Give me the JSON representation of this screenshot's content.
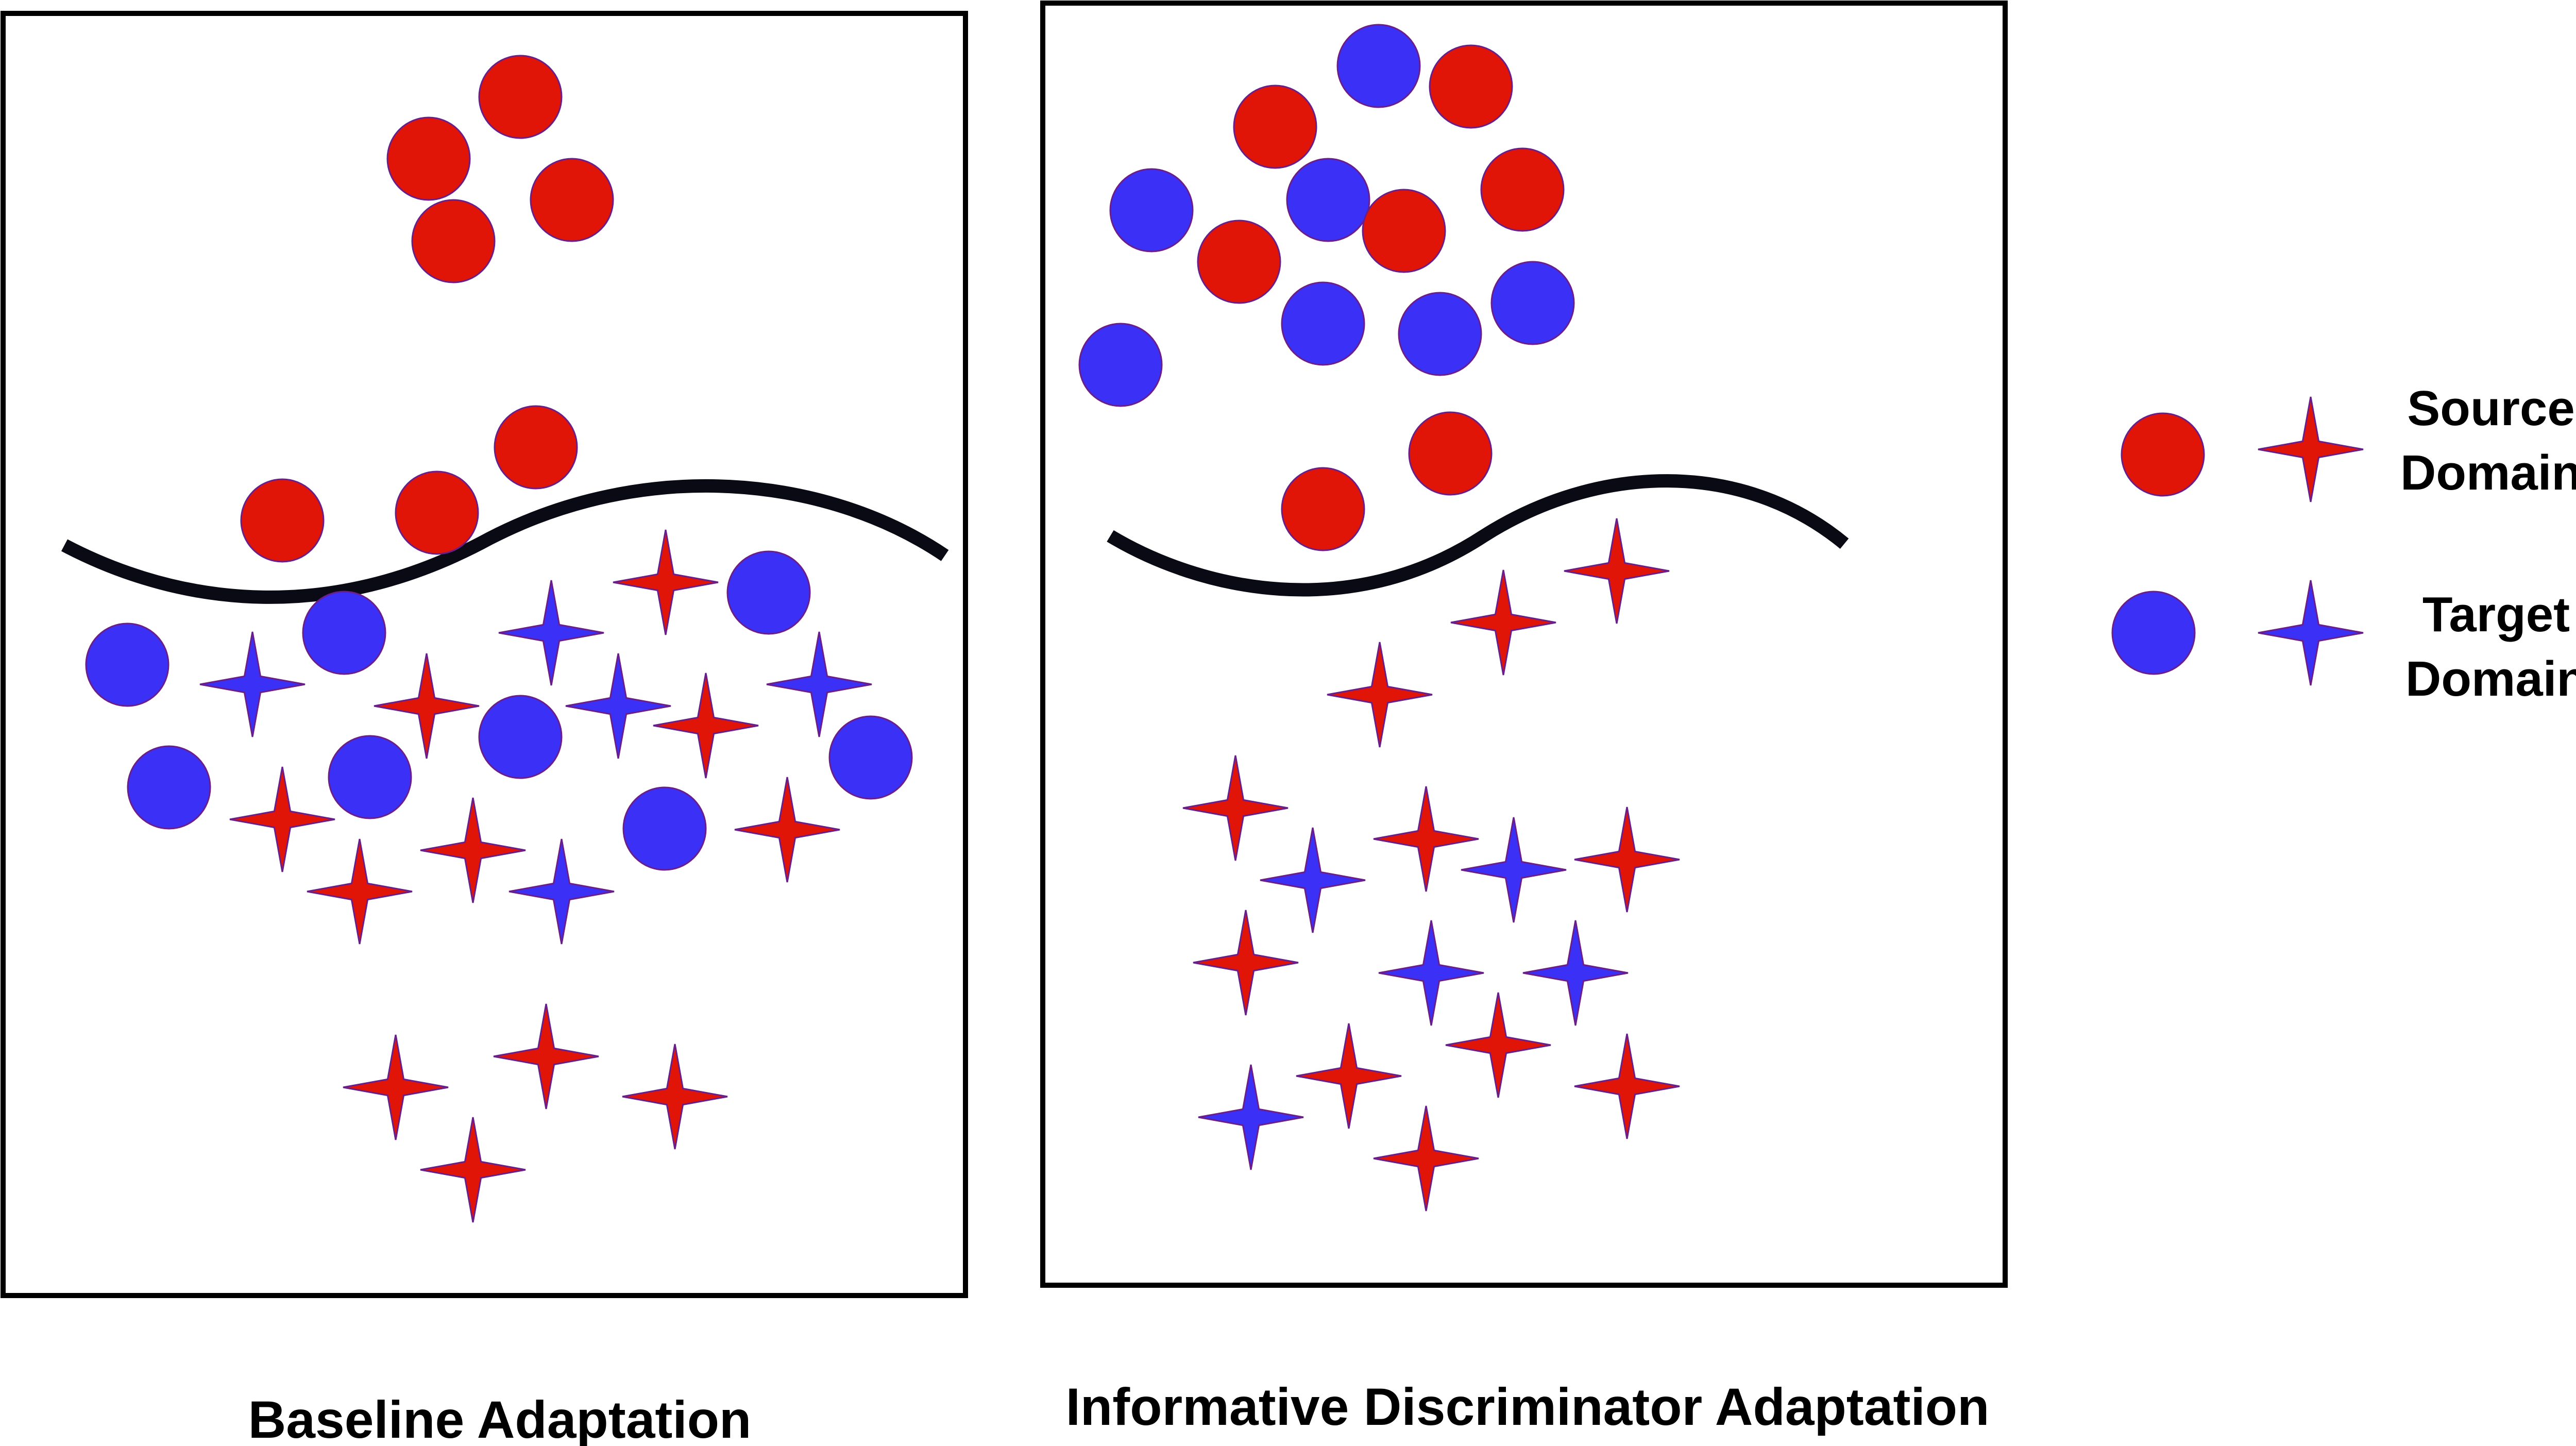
{
  "panels": [
    {
      "caption": "Baseline Adaptation"
    },
    {
      "caption": "Informative Discriminator Adaptation"
    }
  ],
  "legend": {
    "source_line1": "Source",
    "source_line2": "Domain",
    "target_line1": "Target",
    "target_line2": "Domain"
  },
  "colors": {
    "source": "#e11507",
    "target": "#3b30f5",
    "boundary": "#0a0a14",
    "frame": "#000000"
  },
  "icons": {
    "circle": "circle-marker-icon",
    "star": "four-point-star-icon"
  }
}
